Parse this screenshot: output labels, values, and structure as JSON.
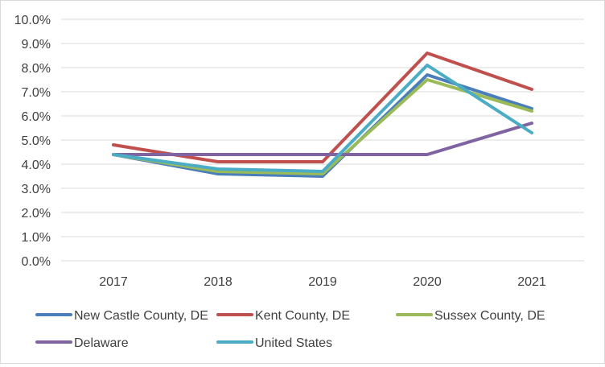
{
  "chart_data": {
    "type": "line",
    "title": "",
    "xlabel": "",
    "ylabel": "",
    "categories": [
      "2017",
      "2018",
      "2019",
      "2020",
      "2021"
    ],
    "ylim": [
      0,
      0.1
    ],
    "yticks": [
      0,
      0.01,
      0.02,
      0.03,
      0.04,
      0.05,
      0.06,
      0.07,
      0.08,
      0.09,
      0.1
    ],
    "ytick_labels": [
      "0.0%",
      "1.0%",
      "2.0%",
      "3.0%",
      "4.0%",
      "5.0%",
      "6.0%",
      "7.0%",
      "8.0%",
      "9.0%",
      "10.0%"
    ],
    "grid": "horizontal",
    "legend_position": "bottom",
    "series": [
      {
        "name": "New Castle County, DE",
        "color": "#4a7ebb",
        "values": [
          0.044,
          0.036,
          0.035,
          0.077,
          0.063
        ]
      },
      {
        "name": "Kent County, DE",
        "color": "#c0504d",
        "values": [
          0.048,
          0.041,
          0.041,
          0.086,
          0.071
        ]
      },
      {
        "name": "Sussex County, DE",
        "color": "#9bbb59",
        "values": [
          0.044,
          0.037,
          0.036,
          0.075,
          0.062
        ]
      },
      {
        "name": "Delaware",
        "color": "#8064a2",
        "values": [
          0.044,
          0.044,
          0.044,
          0.044,
          0.057
        ]
      },
      {
        "name": "United States",
        "color": "#4bacc6",
        "values": [
          0.044,
          0.038,
          0.037,
          0.081,
          0.053
        ]
      }
    ]
  }
}
